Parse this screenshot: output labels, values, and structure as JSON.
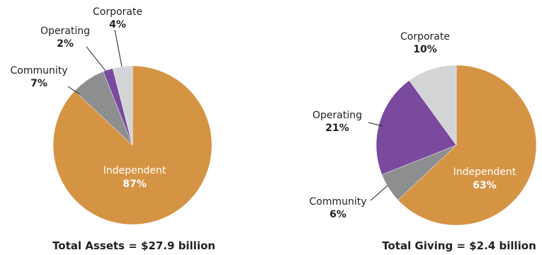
{
  "chart_data": [
    {
      "type": "pie",
      "caption": "Total Assets = $27.9 billion",
      "slices": [
        {
          "label": "Independent",
          "value": 87,
          "value_label": "87%",
          "color": "#d59444"
        },
        {
          "label": "Community",
          "value": 7,
          "value_label": "7%",
          "color": "#8d8e90"
        },
        {
          "label": "Operating",
          "value": 2,
          "value_label": "2%",
          "color": "#7a4a9e"
        },
        {
          "label": "Corporate",
          "value": 4,
          "value_label": "4%",
          "color": "#d3d4d6"
        }
      ]
    },
    {
      "type": "pie",
      "caption": "Total Giving = $2.4 billion",
      "slices": [
        {
          "label": "Independent",
          "value": 63,
          "value_label": "63%",
          "color": "#d59444"
        },
        {
          "label": "Community",
          "value": 6,
          "value_label": "6%",
          "color": "#8d8e90"
        },
        {
          "label": "Operating",
          "value": 21,
          "value_label": "21%",
          "color": "#7a4a9e"
        },
        {
          "label": "Corporate",
          "value": 10,
          "value_label": "10%",
          "color": "#d3d4d6"
        }
      ]
    }
  ]
}
